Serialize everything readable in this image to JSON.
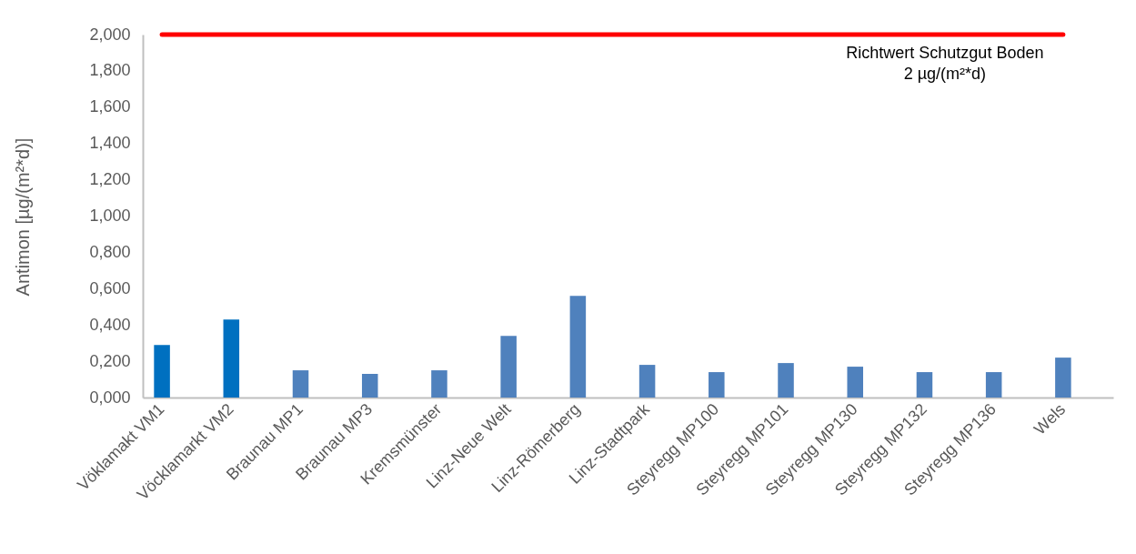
{
  "chart_data": {
    "type": "bar",
    "ylabel": "Antimon [µg/(m²*d)]",
    "categories": [
      "Vöklamakt VM1",
      "Vöcklamarkt VM2",
      "Braunau MP1",
      "Braunau MP3",
      "Kremsmünster",
      "Linz-Neue Welt",
      "Linz-Römerberg",
      "Linz-Stadtpark",
      "Steyregg MP100",
      "Steyregg MP101",
      "Steyregg MP130",
      "Steyregg MP132",
      "Steyregg MP136",
      "Wels"
    ],
    "values": [
      0.29,
      0.43,
      0.15,
      0.13,
      0.15,
      0.34,
      0.56,
      0.18,
      0.14,
      0.19,
      0.17,
      0.14,
      0.14,
      0.22
    ],
    "colors": [
      "#0070c0",
      "#0070c0",
      "#4f81bd",
      "#4f81bd",
      "#4f81bd",
      "#4f81bd",
      "#4f81bd",
      "#4f81bd",
      "#4f81bd",
      "#4f81bd",
      "#4f81bd",
      "#4f81bd",
      "#4f81bd",
      "#4f81bd"
    ],
    "ylim": [
      0,
      2
    ],
    "yticks": [
      {
        "value": 0,
        "label": "0,000"
      },
      {
        "value": 0.2,
        "label": "0,200"
      },
      {
        "value": 0.4,
        "label": "0,400"
      },
      {
        "value": 0.6,
        "label": "0,600"
      },
      {
        "value": 0.8,
        "label": "0,800"
      },
      {
        "value": 1,
        "label": "1,000"
      },
      {
        "value": 1.2,
        "label": "1,200"
      },
      {
        "value": 1.4,
        "label": "1,400"
      },
      {
        "value": 1.6,
        "label": "1,600"
      },
      {
        "value": 1.8,
        "label": "1,800"
      },
      {
        "value": 2,
        "label": "2,000"
      }
    ],
    "ref_lines": [
      {
        "axis": "y",
        "value": 2,
        "label": "Richtwert Schutzgut Boden\n2 µg/(m²*d)",
        "color": "#ff0000"
      }
    ],
    "grid": false
  }
}
